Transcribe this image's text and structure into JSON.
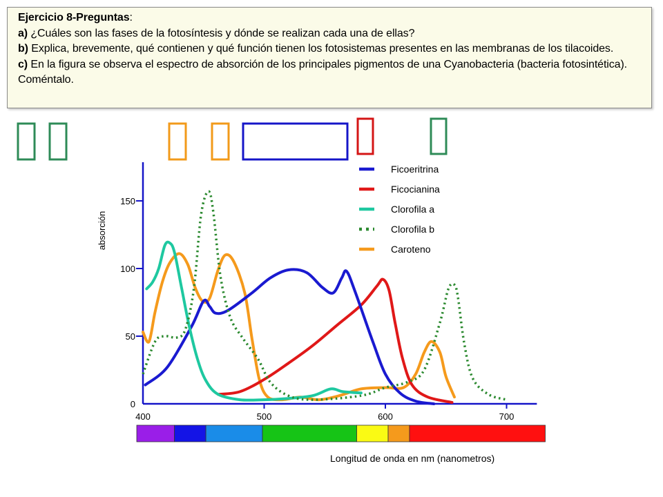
{
  "question": {
    "title": "Ejercicio 8-Preguntas",
    "title_suffix": ":",
    "items": [
      {
        "letter": "a)",
        "text": " ¿Cuáles son las fases de la fotosíntesis y dónde se realizan cada una de ellas?"
      },
      {
        "letter": "b)",
        "text": " Explica, brevemente, qué contienen y qué función tienen los fotosistemas presentes en las membranas de los tilacoides."
      },
      {
        "letter": "c)",
        "text": " En la figura se observa el espectro de absorción de los principales pigmentos de una Cyanobacteria (bacteria fotosintética). Coméntalo."
      }
    ]
  },
  "answer_boxes": [
    {
      "color": "#2e8b57"
    },
    {
      "color": "#2e8b57"
    },
    {
      "color": "#f29a1a"
    },
    {
      "color": "#f29a1a"
    },
    {
      "color": "#1515c8"
    },
    {
      "color": "#d41515"
    },
    {
      "color": "#2e8b57"
    }
  ],
  "chart_data": {
    "type": "line",
    "title": "",
    "ylabel": "absorción",
    "xlabel": "Longitud de onda en  nm (nanometros)",
    "xlim": [
      400,
      725
    ],
    "ylim": [
      0,
      180
    ],
    "x_ticks": [
      400,
      500,
      600,
      700
    ],
    "y_ticks": [
      0,
      50,
      100,
      150
    ],
    "grid": false,
    "legend_position": "top-right",
    "series": [
      {
        "name": "Ficoeritrina",
        "color": "#1a1ad0",
        "style": "solid",
        "points": [
          [
            402,
            14
          ],
          [
            420,
            27
          ],
          [
            440,
            57
          ],
          [
            450,
            76
          ],
          [
            455,
            72
          ],
          [
            460,
            67
          ],
          [
            470,
            69
          ],
          [
            490,
            82
          ],
          [
            505,
            93
          ],
          [
            520,
            99
          ],
          [
            535,
            97
          ],
          [
            548,
            86
          ],
          [
            557,
            82
          ],
          [
            564,
            93
          ],
          [
            568,
            98
          ],
          [
            575,
            83
          ],
          [
            590,
            45
          ],
          [
            600,
            22
          ],
          [
            612,
            8
          ],
          [
            625,
            2
          ],
          [
            640,
            0
          ]
        ]
      },
      {
        "name": "Ficocianina",
        "color": "#e01818",
        "style": "solid",
        "points": [
          [
            462,
            7
          ],
          [
            480,
            9
          ],
          [
            500,
            18
          ],
          [
            520,
            30
          ],
          [
            540,
            43
          ],
          [
            560,
            58
          ],
          [
            580,
            73
          ],
          [
            593,
            87
          ],
          [
            598,
            92
          ],
          [
            603,
            84
          ],
          [
            608,
            60
          ],
          [
            614,
            34
          ],
          [
            622,
            14
          ],
          [
            635,
            5
          ],
          [
            655,
            1
          ]
        ]
      },
      {
        "name": "Clorofila a",
        "color": "#1ec8a0",
        "style": "solid",
        "points": [
          [
            403,
            85
          ],
          [
            408,
            90
          ],
          [
            413,
            100
          ],
          [
            418,
            117
          ],
          [
            422,
            119
          ],
          [
            426,
            112
          ],
          [
            432,
            85
          ],
          [
            438,
            58
          ],
          [
            445,
            33
          ],
          [
            452,
            17
          ],
          [
            462,
            7
          ],
          [
            480,
            3
          ],
          [
            500,
            3
          ],
          [
            520,
            4
          ],
          [
            540,
            6
          ],
          [
            555,
            11
          ],
          [
            565,
            9
          ],
          [
            580,
            8
          ]
        ]
      },
      {
        "name": "Clorofila b",
        "color": "#2c8a30",
        "style": "dotted",
        "points": [
          [
            400,
            22
          ],
          [
            410,
            46
          ],
          [
            418,
            50
          ],
          [
            428,
            49
          ],
          [
            435,
            55
          ],
          [
            442,
            85
          ],
          [
            448,
            140
          ],
          [
            454,
            157
          ],
          [
            458,
            142
          ],
          [
            464,
            94
          ],
          [
            472,
            64
          ],
          [
            482,
            49
          ],
          [
            495,
            33
          ],
          [
            505,
            16
          ],
          [
            520,
            6
          ],
          [
            540,
            3
          ],
          [
            580,
            6
          ],
          [
            600,
            12
          ],
          [
            618,
            16
          ],
          [
            632,
            25
          ],
          [
            645,
            60
          ],
          [
            652,
            85
          ],
          [
            657,
            88
          ],
          [
            660,
            78
          ],
          [
            665,
            45
          ],
          [
            672,
            19
          ],
          [
            685,
            7
          ],
          [
            700,
            3
          ]
        ]
      },
      {
        "name": "Caroteno",
        "color": "#f59a1c",
        "style": "solid",
        "points": [
          [
            400,
            53
          ],
          [
            405,
            46
          ],
          [
            410,
            68
          ],
          [
            416,
            90
          ],
          [
            422,
            104
          ],
          [
            430,
            111
          ],
          [
            437,
            103
          ],
          [
            443,
            86
          ],
          [
            449,
            76
          ],
          [
            455,
            78
          ],
          [
            462,
            99
          ],
          [
            468,
            110
          ],
          [
            475,
            105
          ],
          [
            484,
            82
          ],
          [
            490,
            48
          ],
          [
            496,
            18
          ],
          [
            503,
            5
          ],
          [
            515,
            3
          ],
          [
            530,
            5
          ],
          [
            545,
            3
          ],
          [
            562,
            6
          ],
          [
            580,
            11
          ],
          [
            600,
            12
          ],
          [
            615,
            12
          ],
          [
            625,
            22
          ],
          [
            632,
            38
          ],
          [
            638,
            46
          ],
          [
            645,
            38
          ],
          [
            650,
            20
          ],
          [
            657,
            5
          ]
        ]
      }
    ],
    "spectrum_bar": [
      {
        "from": 400,
        "to": 430,
        "color": "#9a1ee8"
      },
      {
        "from": 430,
        "to": 455,
        "color": "#1414e6"
      },
      {
        "from": 455,
        "to": 500,
        "color": "#1a8ce8"
      },
      {
        "from": 500,
        "to": 575,
        "color": "#16c416"
      },
      {
        "from": 575,
        "to": 600,
        "color": "#fafa14"
      },
      {
        "from": 600,
        "to": 617,
        "color": "#f59a1c"
      },
      {
        "from": 617,
        "to": 725,
        "color": "#ff1010"
      }
    ]
  }
}
